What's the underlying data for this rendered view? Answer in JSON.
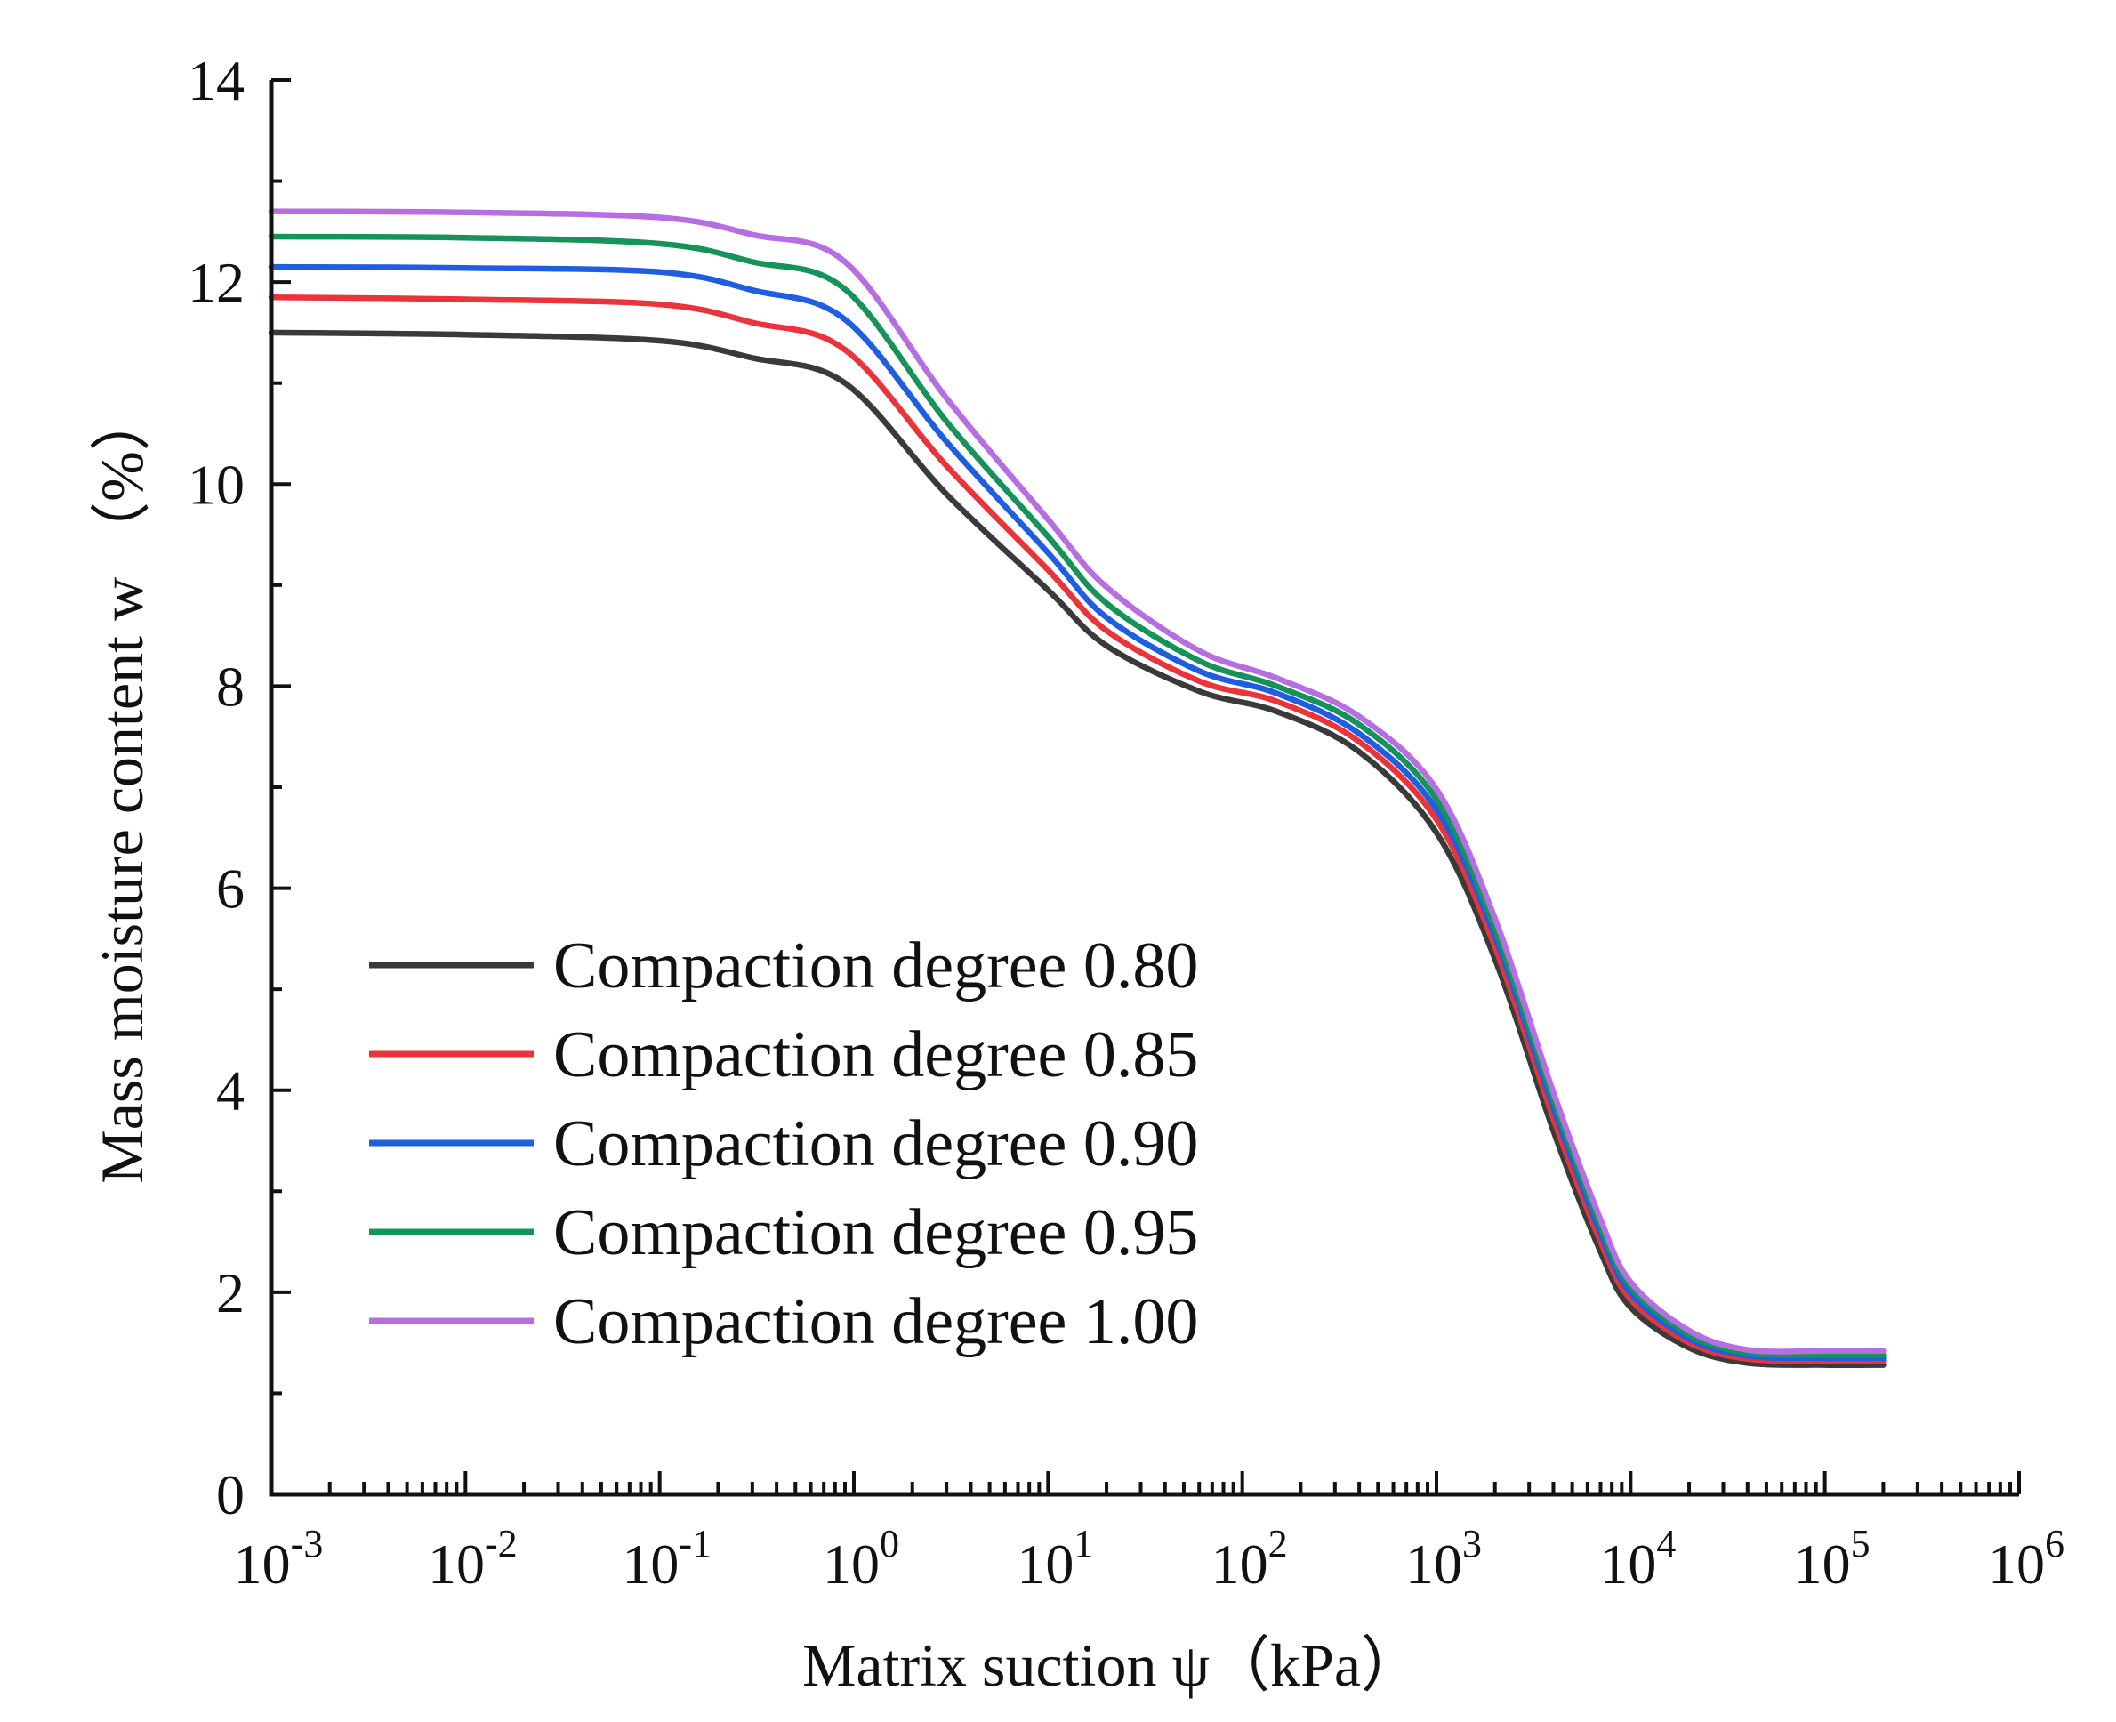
{
  "chart_data": {
    "type": "line",
    "xlabel": "Matrix suction ψ（kPa）",
    "ylabel": "Mass moisture content w （%）",
    "xscale": "log",
    "xlim": [
      0.001,
      1000000
    ],
    "ylim": [
      0,
      14
    ],
    "x_tick_labels": [
      {
        "base": "10",
        "exp": "-3"
      },
      {
        "base": "10",
        "exp": "-2"
      },
      {
        "base": "10",
        "exp": "-1"
      },
      {
        "base": "10",
        "exp": "0"
      },
      {
        "base": "10",
        "exp": "1"
      },
      {
        "base": "10",
        "exp": "2"
      },
      {
        "base": "10",
        "exp": "3"
      },
      {
        "base": "10",
        "exp": "4"
      },
      {
        "base": "10",
        "exp": "5"
      },
      {
        "base": "10",
        "exp": "6"
      }
    ],
    "y_ticks": [
      "0",
      "2",
      "4",
      "6",
      "8",
      "10",
      "12",
      "14"
    ],
    "legend_position": "bottom-left",
    "x": [
      0.001,
      0.01,
      0.1,
      0.3,
      0.9,
      3,
      10,
      20,
      60,
      150,
      400,
      1000,
      2000,
      4000,
      7000,
      10000,
      20000,
      40000,
      100000,
      200000
    ],
    "series": [
      {
        "name": "Compaction degree 0.80",
        "color": "#3a3a3a",
        "values": [
          11.5,
          11.48,
          11.42,
          11.25,
          11.0,
          9.9,
          8.95,
          8.4,
          7.95,
          7.75,
          7.35,
          6.55,
          5.3,
          3.6,
          2.4,
          1.85,
          1.45,
          1.3,
          1.28,
          1.28
        ]
      },
      {
        "name": "Compaction degree 0.85",
        "color": "#e8343a",
        "values": [
          11.85,
          11.83,
          11.78,
          11.6,
          11.33,
          10.18,
          9.15,
          8.55,
          8.05,
          7.85,
          7.45,
          6.68,
          5.42,
          3.72,
          2.5,
          1.93,
          1.5,
          1.34,
          1.32,
          1.32
        ]
      },
      {
        "name": "Compaction degree 0.90",
        "color": "#1f5ee0",
        "values": [
          12.15,
          12.14,
          12.1,
          11.92,
          11.63,
          10.42,
          9.32,
          8.68,
          8.15,
          7.93,
          7.53,
          6.78,
          5.52,
          3.82,
          2.58,
          1.99,
          1.54,
          1.37,
          1.35,
          1.35
        ]
      },
      {
        "name": "Compaction degree 0.95",
        "color": "#16925a",
        "values": [
          12.45,
          12.44,
          12.38,
          12.2,
          11.93,
          10.62,
          9.48,
          8.82,
          8.25,
          8.0,
          7.62,
          6.88,
          5.6,
          3.9,
          2.65,
          2.05,
          1.58,
          1.4,
          1.38,
          1.38
        ]
      },
      {
        "name": "Compaction degree 1.00",
        "color": "#b66ee0",
        "values": [
          12.7,
          12.69,
          12.64,
          12.47,
          12.2,
          10.85,
          9.65,
          8.98,
          8.35,
          8.08,
          7.7,
          6.98,
          5.7,
          3.98,
          2.72,
          2.1,
          1.62,
          1.43,
          1.42,
          1.42
        ]
      }
    ]
  }
}
